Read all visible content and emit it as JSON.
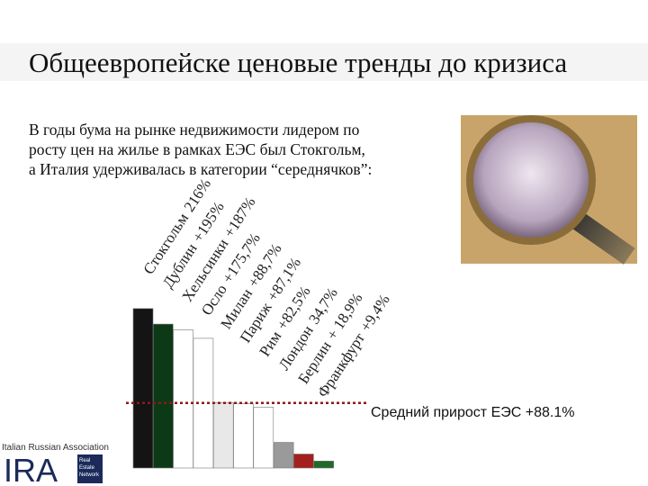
{
  "chart_data": {
    "type": "bar",
    "title": "Общеевропейске ценовые тренды до кризиса",
    "subtitle": [
      "В годы бума на рынке недвижимости лидером по",
      "росту цен  на жилье в рамках ЕЭС был Стокгольм,",
      "а Италия удерживалась в категории “середнячков”:"
    ],
    "categories": [
      "Стокгольм",
      "Дублин",
      "Хельсинки",
      "Осло",
      "Милан",
      "Париж",
      "Рим",
      "Лондон",
      "Берлин",
      "Франкфурт"
    ],
    "values": [
      216,
      195,
      187,
      175.7,
      88.7,
      87.1,
      82.5,
      34.7,
      18.9,
      9.4
    ],
    "value_labels": [
      "216%",
      "+195%",
      "+187%",
      "+175,7%",
      "+88,7%",
      "+87,1%",
      "+82,5%",
      "34,7%",
      "+ 18,9%",
      "+9,4%"
    ],
    "colors": [
      "#141414",
      "#0c3a16",
      "#ffffff",
      "#ffffff",
      "#e8e8e8",
      "#ffffff",
      "#ffffff",
      "#9a9a9a",
      "#a3201e",
      "#1e6b2a"
    ],
    "average": {
      "value": 88.1,
      "label": "Средний прирост ЕЭС +88.1%",
      "color": "#8b1a1a"
    }
  },
  "logo": {
    "association": "Italian Russian Association",
    "mark": "IRA",
    "network": [
      "Real",
      "Estate",
      "Network"
    ]
  }
}
